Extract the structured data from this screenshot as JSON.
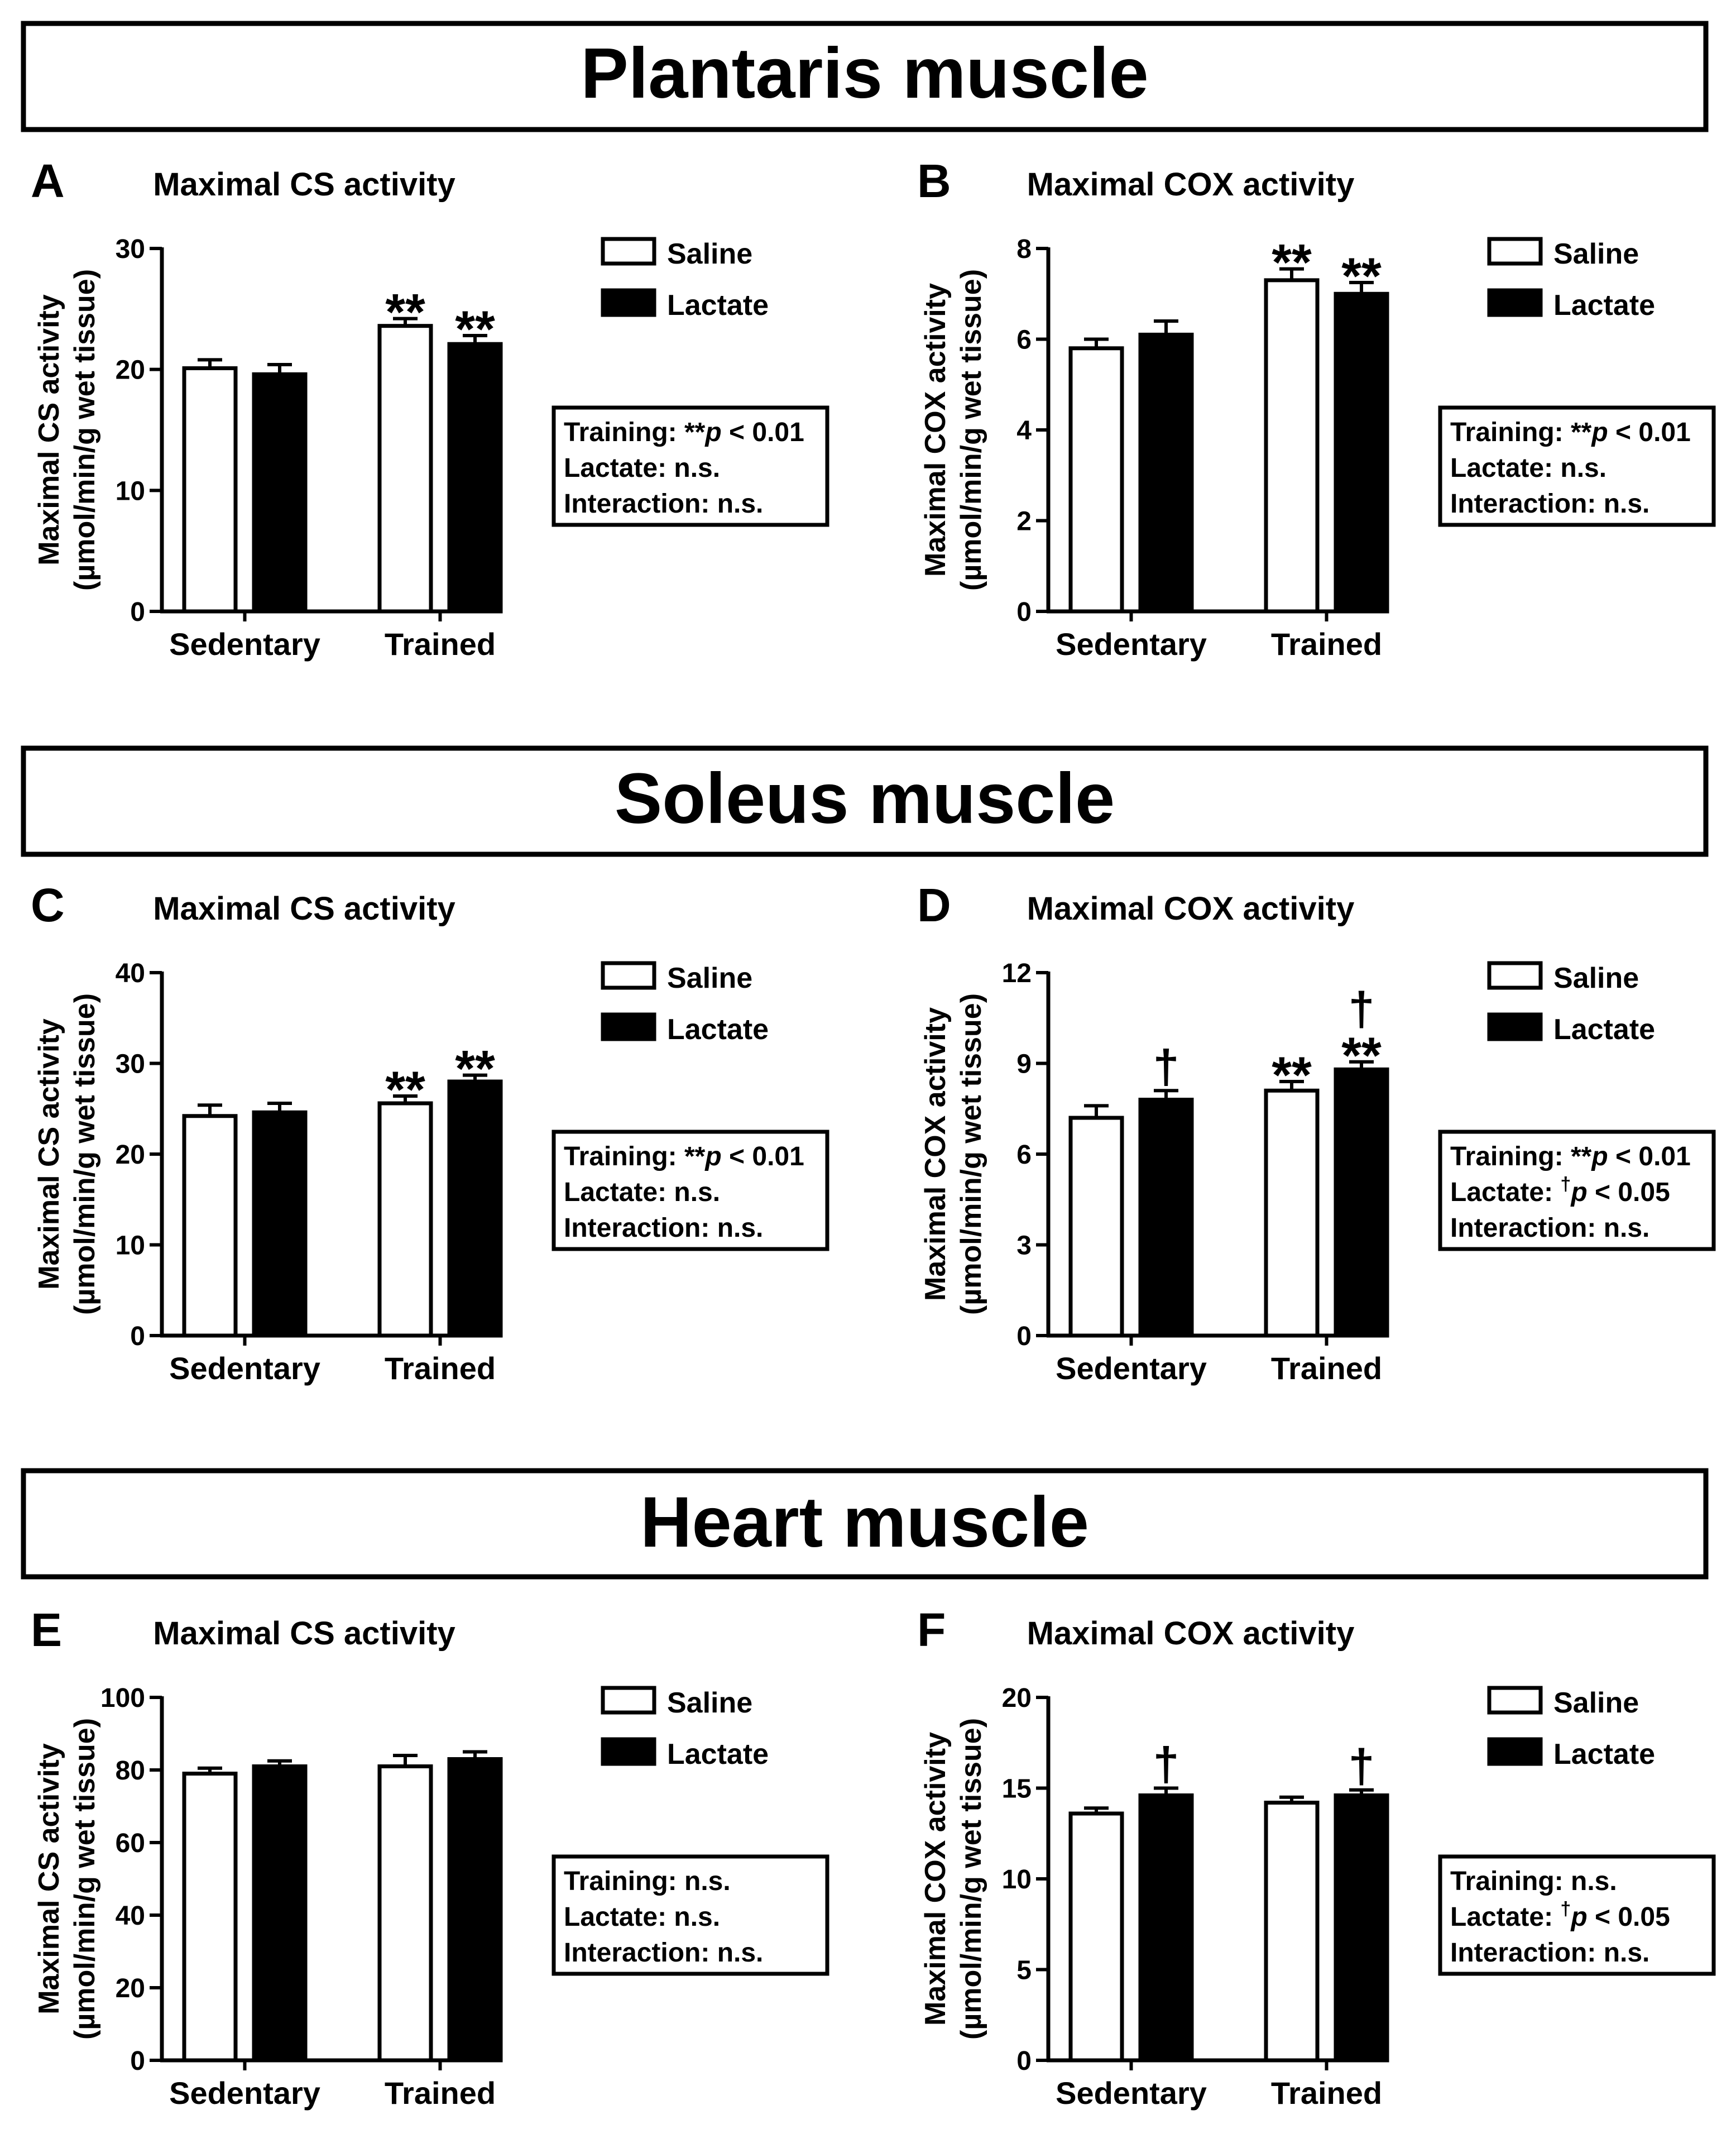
{
  "sections": [
    {
      "title": "Plantaris muscle"
    },
    {
      "title": "Soleus muscle"
    },
    {
      "title": "Heart muscle"
    }
  ],
  "chart_data": [
    {
      "type": "bar",
      "panel": "A",
      "muscle": "Plantaris muscle",
      "title": "Maximal CS activity",
      "ylabel_line1": "Maximal CS activity",
      "ylabel_line2": "(µmol/min/g wet tissue)",
      "xlabel": "",
      "categories": [
        "Sedentary",
        "Trained"
      ],
      "ylim": [
        0,
        30
      ],
      "yticks": [
        0,
        10,
        20,
        30
      ],
      "series": [
        {
          "name": "Saline",
          "values": [
            20.1,
            23.6
          ],
          "errors": [
            0.7,
            0.6
          ],
          "marks": [
            "",
            "**"
          ]
        },
        {
          "name": "Lactate",
          "values": [
            19.6,
            22.1
          ],
          "errors": [
            0.8,
            0.7
          ],
          "marks": [
            "",
            "**"
          ]
        }
      ],
      "legend": [
        "Saline",
        "Lactate"
      ],
      "stats": [
        {
          "label": "Training: ",
          "symbol": "**",
          "p": "p",
          "rest": " < 0.01"
        },
        {
          "label": "Lactate: n.s.",
          "symbol": "",
          "p": "",
          "rest": ""
        },
        {
          "label": "Interaction: n.s.",
          "symbol": "",
          "p": "",
          "rest": ""
        }
      ]
    },
    {
      "type": "bar",
      "panel": "B",
      "muscle": "Plantaris muscle",
      "title": "Maximal COX activity",
      "ylabel_line1": "Maximal COX activity",
      "ylabel_line2": "(µmol/min/g wet tissue)",
      "xlabel": "",
      "categories": [
        "Sedentary",
        "Trained"
      ],
      "ylim": [
        0,
        8
      ],
      "yticks": [
        0,
        2,
        4,
        6,
        8
      ],
      "series": [
        {
          "name": "Saline",
          "values": [
            5.8,
            7.3
          ],
          "errors": [
            0.2,
            0.25
          ],
          "marks": [
            "",
            "**"
          ]
        },
        {
          "name": "Lactate",
          "values": [
            6.1,
            7.0
          ],
          "errors": [
            0.3,
            0.25
          ],
          "marks": [
            "",
            "**"
          ]
        }
      ],
      "legend": [
        "Saline",
        "Lactate"
      ],
      "stats": [
        {
          "label": "Training: ",
          "symbol": "**",
          "p": "p",
          "rest": " < 0.01"
        },
        {
          "label": "Lactate: n.s.",
          "symbol": "",
          "p": "",
          "rest": ""
        },
        {
          "label": "Interaction: n.s.",
          "symbol": "",
          "p": "",
          "rest": ""
        }
      ]
    },
    {
      "type": "bar",
      "panel": "C",
      "muscle": "Soleus muscle",
      "title": "Maximal CS activity",
      "ylabel_line1": "Maximal CS activity",
      "ylabel_line2": "(µmol/min/g wet tissue)",
      "xlabel": "",
      "categories": [
        "Sedentary",
        "Trained"
      ],
      "ylim": [
        0,
        40
      ],
      "yticks": [
        0,
        10,
        20,
        30,
        40
      ],
      "series": [
        {
          "name": "Saline",
          "values": [
            24.2,
            25.6
          ],
          "errors": [
            1.2,
            0.8
          ],
          "marks": [
            "",
            "**"
          ]
        },
        {
          "name": "Lactate",
          "values": [
            24.6,
            28.0
          ],
          "errors": [
            1.0,
            0.7
          ],
          "marks": [
            "",
            "**"
          ]
        }
      ],
      "legend": [
        "Saline",
        "Lactate"
      ],
      "stats": [
        {
          "label": "Training: ",
          "symbol": "**",
          "p": "p",
          "rest": " < 0.01"
        },
        {
          "label": "Lactate: n.s.",
          "symbol": "",
          "p": "",
          "rest": ""
        },
        {
          "label": "Interaction: n.s.",
          "symbol": "",
          "p": "",
          "rest": ""
        }
      ]
    },
    {
      "type": "bar",
      "panel": "D",
      "muscle": "Soleus muscle",
      "title": "Maximal COX activity",
      "ylabel_line1": "Maximal COX activity",
      "ylabel_line2": "(µmol/min/g wet tissue)",
      "xlabel": "",
      "categories": [
        "Sedentary",
        "Trained"
      ],
      "ylim": [
        0,
        12
      ],
      "yticks": [
        0,
        3,
        6,
        9,
        12
      ],
      "series": [
        {
          "name": "Saline",
          "values": [
            7.2,
            8.1
          ],
          "errors": [
            0.4,
            0.3
          ],
          "marks": [
            "",
            "**"
          ]
        },
        {
          "name": "Lactate",
          "values": [
            7.8,
            8.8
          ],
          "errors": [
            0.3,
            0.25
          ],
          "marks": [
            "†",
            "†\n**"
          ]
        }
      ],
      "legend": [
        "Saline",
        "Lactate"
      ],
      "stats": [
        {
          "label": "Training: ",
          "symbol": "**",
          "p": "p",
          "rest": " < 0.01"
        },
        {
          "label": "Lactate: ",
          "symbol": "†",
          "p": "p",
          "rest": " < 0.05"
        },
        {
          "label": "Interaction: n.s.",
          "symbol": "",
          "p": "",
          "rest": ""
        }
      ]
    },
    {
      "type": "bar",
      "panel": "E",
      "muscle": "Heart muscle",
      "title": "Maximal CS activity",
      "ylabel_line1": "Maximal CS activity",
      "ylabel_line2": "(µmol/min/g wet tissue)",
      "xlabel": "",
      "categories": [
        "Sedentary",
        "Trained"
      ],
      "ylim": [
        0,
        100
      ],
      "yticks": [
        0,
        20,
        40,
        60,
        80,
        100
      ],
      "series": [
        {
          "name": "Saline",
          "values": [
            79,
            81
          ],
          "errors": [
            1.5,
            3.0
          ],
          "marks": [
            "",
            ""
          ]
        },
        {
          "name": "Lactate",
          "values": [
            81,
            83
          ],
          "errors": [
            1.5,
            2.0
          ],
          "marks": [
            "",
            ""
          ]
        }
      ],
      "legend": [
        "Saline",
        "Lactate"
      ],
      "stats": [
        {
          "label": "Training: n.s.",
          "symbol": "",
          "p": "",
          "rest": ""
        },
        {
          "label": "Lactate: n.s.",
          "symbol": "",
          "p": "",
          "rest": ""
        },
        {
          "label": "Interaction: n.s.",
          "symbol": "",
          "p": "",
          "rest": ""
        }
      ]
    },
    {
      "type": "bar",
      "panel": "F",
      "muscle": "Heart muscle",
      "title": "Maximal COX activity",
      "ylabel_line1": "Maximal COX activity",
      "ylabel_line2": "(µmol/min/g wet tissue)",
      "xlabel": "",
      "categories": [
        "Sedentary",
        "Trained"
      ],
      "ylim": [
        0,
        20
      ],
      "yticks": [
        0,
        5,
        10,
        15,
        20
      ],
      "series": [
        {
          "name": "Saline",
          "values": [
            13.6,
            14.2
          ],
          "errors": [
            0.3,
            0.3
          ],
          "marks": [
            "",
            ""
          ]
        },
        {
          "name": "Lactate",
          "values": [
            14.6,
            14.6
          ],
          "errors": [
            0.4,
            0.3
          ],
          "marks": [
            "†",
            "†"
          ]
        }
      ],
      "legend": [
        "Saline",
        "Lactate"
      ],
      "stats": [
        {
          "label": "Training: n.s.",
          "symbol": "",
          "p": "",
          "rest": ""
        },
        {
          "label": "Lactate: ",
          "symbol": "†",
          "p": "p",
          "rest": " < 0.05"
        },
        {
          "label": "Interaction: n.s.",
          "symbol": "",
          "p": "",
          "rest": ""
        }
      ]
    }
  ]
}
